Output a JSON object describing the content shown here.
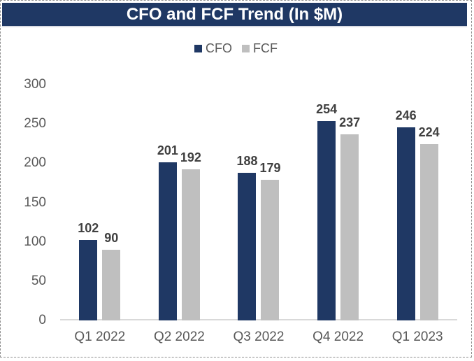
{
  "title": "CFO and FCF Trend (In $M)",
  "colors": {
    "navy": "#1F3864",
    "bar_gray": "#BFBFBF",
    "axis_line": "#D9D9D9",
    "tick_text": "#595959",
    "data_label": "#404040",
    "title_text": "#FFFFFF"
  },
  "chart_data": {
    "type": "bar",
    "title": "CFO and FCF Trend (In $M)",
    "categories": [
      "Q1 2022",
      "Q2 2022",
      "Q3 2022",
      "Q4 2022",
      "Q1 2023"
    ],
    "series": [
      {
        "name": "CFO",
        "color": "#1F3864",
        "values": [
          102,
          201,
          188,
          254,
          246
        ]
      },
      {
        "name": "FCF",
        "color": "#BFBFBF",
        "pattern": "vertical-stripes",
        "values": [
          90,
          192,
          179,
          237,
          224
        ]
      }
    ],
    "xlabel": "",
    "ylabel": "",
    "ylim": [
      0,
      300
    ],
    "yticks": [
      0,
      50,
      100,
      150,
      200,
      250,
      300
    ],
    "grid": false,
    "legend_position": "top",
    "data_labels": "outside-end"
  }
}
